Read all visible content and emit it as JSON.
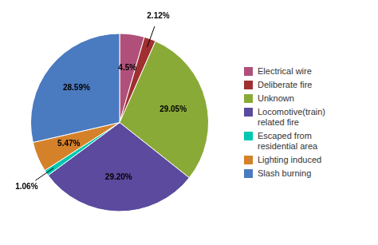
{
  "chart_data": {
    "type": "pie",
    "categories": [
      "Electrical wire",
      "Deliberate fire",
      "Unknown",
      "Locomotive(train)\nrelated fire",
      "Escaped from\nresidential area",
      "Lighting induced",
      "Slash burning"
    ],
    "values": [
      4.5,
      2.12,
      29.05,
      29.2,
      1.06,
      5.47,
      28.59
    ],
    "value_labels": [
      "4.5%",
      "2.12%",
      "29.05%",
      "29.20%",
      "1.06%",
      "5.47%",
      "28.59%"
    ],
    "colors": [
      "#b0507a",
      "#a03030",
      "#8aaa38",
      "#5b4a9e",
      "#00c8b0",
      "#d4812a",
      "#4a7abf"
    ],
    "data_labels": true,
    "legend": "right"
  }
}
